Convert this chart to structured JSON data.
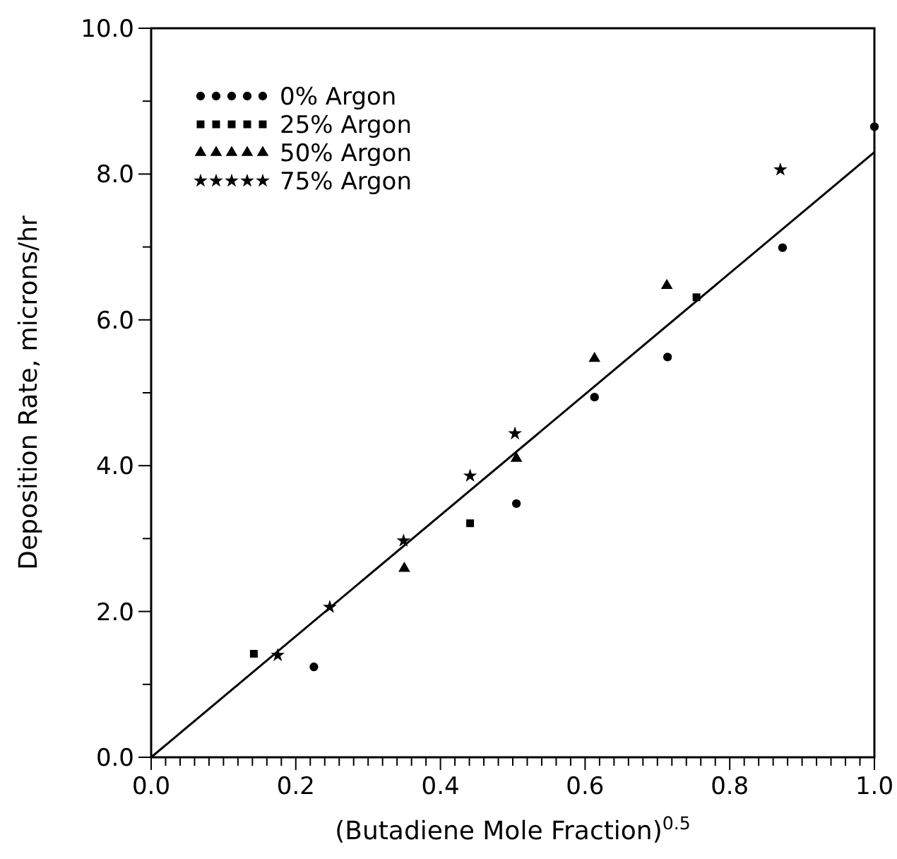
{
  "chart_data": {
    "type": "scatter",
    "xlabel": "(Butadiene Mole Fraction)$^{0.5}$",
    "ylabel": "Deposition Rate, microns/hr",
    "xlim": [
      0,
      1
    ],
    "ylim": [
      0,
      10
    ],
    "xticks": [
      {
        "value": 0,
        "label": "0.0"
      },
      {
        "value": 0.02,
        "label": null
      },
      {
        "value": 0.04,
        "label": null
      },
      {
        "value": 0.06,
        "label": null
      },
      {
        "value": 0.08,
        "label": null
      },
      {
        "value": 0.1,
        "label": null
      },
      {
        "value": 0.12,
        "label": null
      },
      {
        "value": 0.14,
        "label": null
      },
      {
        "value": 0.16,
        "label": null
      },
      {
        "value": 0.18,
        "label": null
      },
      {
        "value": 0.2,
        "label": "0.2"
      },
      {
        "value": 0.22,
        "label": null
      },
      {
        "value": 0.24,
        "label": null
      },
      {
        "value": 0.26,
        "label": null
      },
      {
        "value": 0.28,
        "label": null
      },
      {
        "value": 0.3,
        "label": null
      },
      {
        "value": 0.32,
        "label": null
      },
      {
        "value": 0.34,
        "label": null
      },
      {
        "value": 0.36,
        "label": null
      },
      {
        "value": 0.38,
        "label": null
      },
      {
        "value": 0.4,
        "label": "0.4"
      },
      {
        "value": 0.42,
        "label": null
      },
      {
        "value": 0.44,
        "label": null
      },
      {
        "value": 0.46,
        "label": null
      },
      {
        "value": 0.48,
        "label": null
      },
      {
        "value": 0.5,
        "label": null
      },
      {
        "value": 0.52,
        "label": null
      },
      {
        "value": 0.54,
        "label": null
      },
      {
        "value": 0.56,
        "label": null
      },
      {
        "value": 0.58,
        "label": null
      },
      {
        "value": 0.6,
        "label": "0.6"
      },
      {
        "value": 0.62,
        "label": null
      },
      {
        "value": 0.64,
        "label": null
      },
      {
        "value": 0.66,
        "label": null
      },
      {
        "value": 0.68,
        "label": null
      },
      {
        "value": 0.7,
        "label": null
      },
      {
        "value": 0.72,
        "label": null
      },
      {
        "value": 0.74,
        "label": null
      },
      {
        "value": 0.76,
        "label": null
      },
      {
        "value": 0.78,
        "label": null
      },
      {
        "value": 0.8,
        "label": "0.8"
      },
      {
        "value": 0.82,
        "label": null
      },
      {
        "value": 0.84,
        "label": null
      },
      {
        "value": 0.86,
        "label": null
      },
      {
        "value": 0.88,
        "label": null
      },
      {
        "value": 0.9,
        "label": null
      },
      {
        "value": 0.92,
        "label": null
      },
      {
        "value": 0.94,
        "label": null
      },
      {
        "value": 0.96,
        "label": null
      },
      {
        "value": 0.98,
        "label": null
      },
      {
        "value": 1,
        "label": "1.0"
      }
    ],
    "yticks": [
      {
        "value": 0,
        "label": "0.0"
      },
      {
        "value": 1,
        "label": null
      },
      {
        "value": 2,
        "label": "2.0"
      },
      {
        "value": 3,
        "label": null
      },
      {
        "value": 4,
        "label": "4.0"
      },
      {
        "value": 5,
        "label": null
      },
      {
        "value": 6,
        "label": "6.0"
      },
      {
        "value": 7,
        "label": null
      },
      {
        "value": 8,
        "label": "8.0"
      },
      {
        "value": 9,
        "label": null
      },
      {
        "value": 10,
        "label": "10.0"
      }
    ],
    "grid": false,
    "legend": "top left",
    "series": [
      {
        "name": "0% Argon",
        "color": "#000000",
        "marker": "circle",
        "x": [
          0.225,
          0.505,
          0.613,
          0.714,
          0.873,
          1.0
        ],
        "values": [
          1.24,
          3.48,
          4.94,
          5.49,
          6.99,
          8.65
        ]
      },
      {
        "name": "25% Argon",
        "color": "#000000",
        "marker": "square",
        "x": [
          0.142,
          0.441,
          0.754
        ],
        "values": [
          1.42,
          3.21,
          6.31
        ]
      },
      {
        "name": "50% Argon",
        "color": "#000000",
        "marker": "triangle",
        "x": [
          0.35,
          0.505,
          0.613,
          0.713
        ],
        "values": [
          2.59,
          4.1,
          5.47,
          6.47
        ]
      },
      {
        "name": "75% Argon",
        "color": "#000000",
        "marker": "star",
        "x": [
          0.175,
          0.247,
          0.349,
          0.441,
          0.503,
          0.87
        ],
        "values": [
          1.4,
          2.06,
          2.97,
          3.86,
          4.44,
          8.06
        ]
      },
      {
        "type": "line",
        "color": "#000000",
        "marker": "none",
        "line_style": "solid",
        "x": [
          0,
          1
        ],
        "values": [
          0,
          8.3
        ]
      }
    ]
  }
}
